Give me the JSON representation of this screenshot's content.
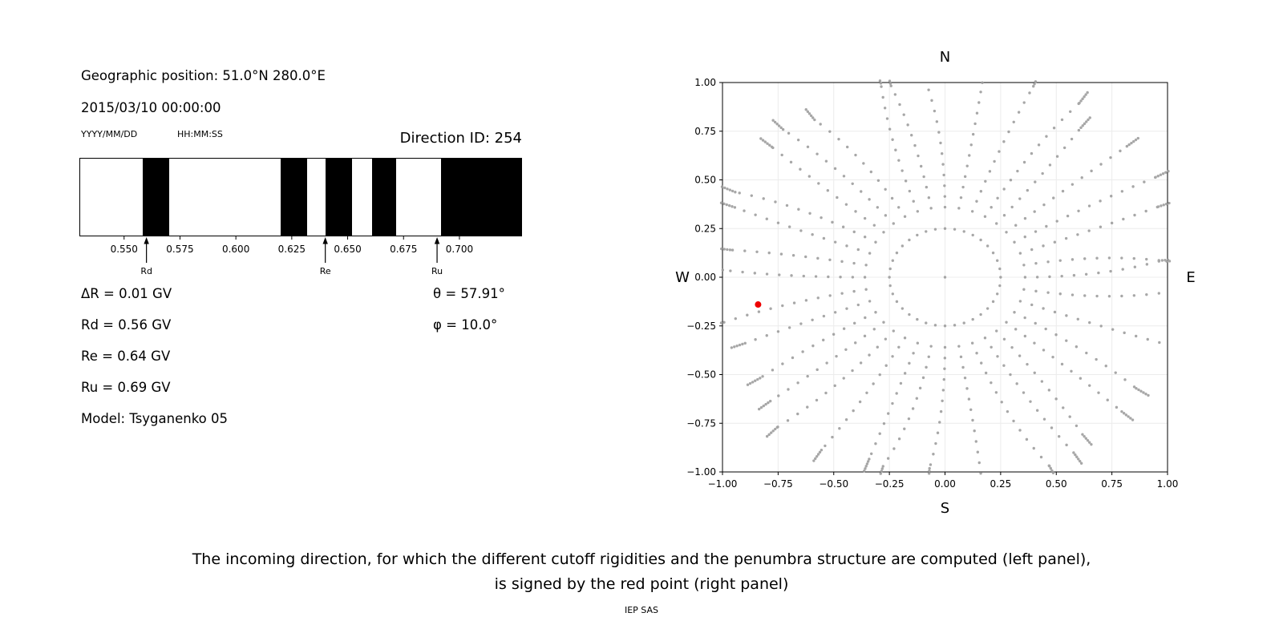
{
  "left_panel": {
    "geo_position": "Geographic position: 51.0°N 280.0°E",
    "datetime": "2015/03/10 00:00:00",
    "date_format": "YYYY/MM/DD",
    "time_format": "HH:MM:SS",
    "direction_id": "Direction ID: 254",
    "info_left": [
      "ΔR = 0.01 GV",
      "Rd = 0.56 GV",
      "Re = 0.64 GV",
      "Ru = 0.69 GV",
      "Model: Tsyganenko 05"
    ],
    "info_right": [
      "θ = 57.91°",
      "φ = 10.0°"
    ]
  },
  "caption": {
    "line1": "The incoming direction, for which the different cutoff rigidities and the penumbra structure are computed (left panel),",
    "line2": "is signed by the red point (right panel)"
  },
  "footer": "IEP SAS",
  "chart_data": [
    {
      "id": "penumbra",
      "type": "bar",
      "title": "Penumbra structure: allowed (white) and forbidden (black) rigidity bands, GV",
      "xlim": [
        0.53,
        0.728
      ],
      "tick_values": [
        0.55,
        0.575,
        0.6,
        0.625,
        0.65,
        0.675,
        0.7
      ],
      "tick_labels": [
        "0.550",
        "0.575",
        "0.600",
        "0.625",
        "0.650",
        "0.675",
        "0.700"
      ],
      "black_bands": [
        [
          0.558,
          0.57
        ],
        [
          0.62,
          0.632
        ],
        [
          0.64,
          0.652
        ],
        [
          0.661,
          0.672
        ],
        [
          0.692,
          0.728
        ]
      ],
      "markers": [
        {
          "label": "Rd",
          "value": 0.56
        },
        {
          "label": "Re",
          "value": 0.64
        },
        {
          "label": "Ru",
          "value": 0.69
        }
      ],
      "band_color": "#000000"
    },
    {
      "id": "direction-map",
      "type": "scatter",
      "xlim": [
        -1,
        1
      ],
      "ylim": [
        -1,
        1
      ],
      "x_tick_labels": [
        "−1.00",
        "−0.75",
        "−0.50",
        "−0.25",
        "0.00",
        "0.25",
        "0.50",
        "0.75",
        "1.00"
      ],
      "y_tick_labels": [
        "1.00",
        "0.75",
        "0.50",
        "0.25",
        "0.00",
        "−0.25",
        "−0.50",
        "−0.75",
        "−1.00"
      ],
      "compass": {
        "top": "N",
        "bottom": "S",
        "left": "W",
        "right": "E"
      },
      "dot_color": "#9b9b9b",
      "grid_pattern": {
        "azimuth_step_deg": 10,
        "center_dot": true,
        "inner_ring_radius": 0.25,
        "spoke_radius_start": 0.36,
        "spoke_radius_step": 0.055,
        "spoke_radius_max_base": 0.96,
        "spoke_radius_max_jitter": 0.12,
        "tip_cluster_count": 6,
        "tip_cluster_step": 0.013,
        "max_drift_deg": 6
      },
      "selected_point": {
        "x": -0.84,
        "y": -0.14,
        "color": "#ee0000"
      }
    }
  ]
}
